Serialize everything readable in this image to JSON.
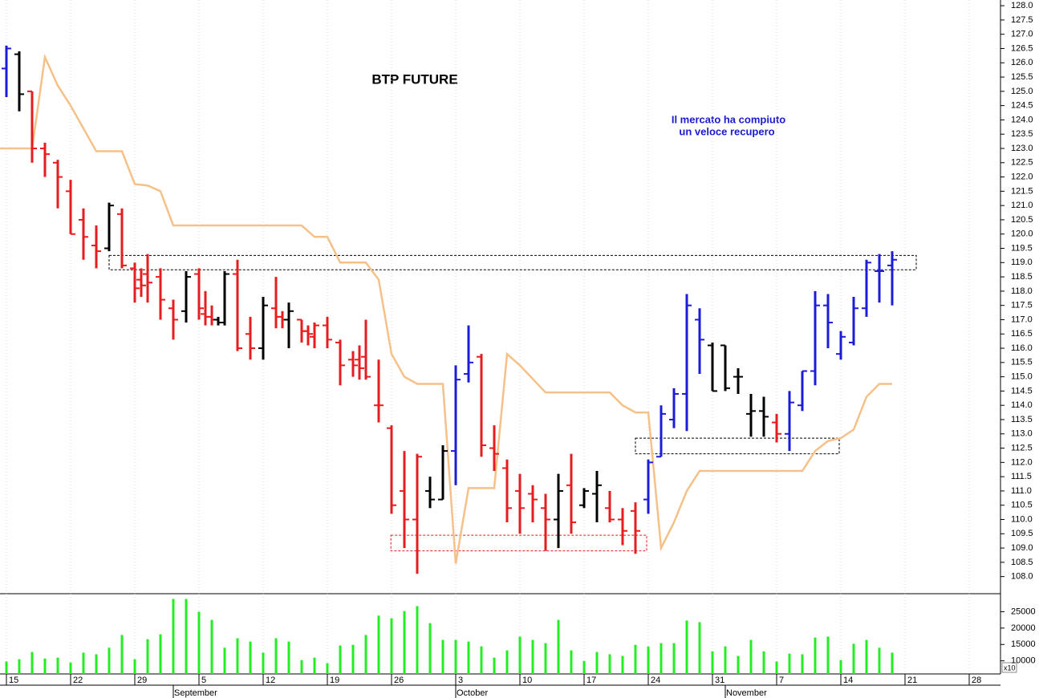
{
  "chart_data": [
    {
      "type": "ohlc",
      "title": "BTP FUTURE",
      "annotation": [
        "Il mercato ha compiuto",
        "un veloce recupero"
      ],
      "xlim": [
        -1,
        154.875
      ],
      "ylim": [
        107.4,
        128.2
      ],
      "xgrid": true,
      "xticks": [
        {
          "value": 0,
          "label": "15"
        },
        {
          "value": 10,
          "label": "22"
        },
        {
          "value": 20,
          "label": "29"
        },
        {
          "value": 30,
          "label": "5"
        },
        {
          "value": 40,
          "label": "12"
        },
        {
          "value": 50,
          "label": "19"
        },
        {
          "value": 60,
          "label": "26"
        },
        {
          "value": 70,
          "label": "3"
        },
        {
          "value": 80,
          "label": "10"
        },
        {
          "value": 90,
          "label": "17"
        },
        {
          "value": 100,
          "label": "24"
        },
        {
          "value": 110,
          "label": "31"
        },
        {
          "value": 120,
          "label": "7"
        },
        {
          "value": 130,
          "label": "14"
        },
        {
          "value": 140,
          "label": "21"
        },
        {
          "value": 150,
          "label": "28"
        }
      ],
      "month_ticks": [
        {
          "value": 26,
          "label": "September"
        },
        {
          "value": 70,
          "label": "October"
        },
        {
          "value": 112,
          "label": "November"
        }
      ],
      "yticks": [
        {
          "value": 108,
          "label": "108.0"
        },
        108.5,
        {
          "value": 109,
          "label": "109.0"
        },
        109.5,
        {
          "value": 110,
          "label": "110.0"
        },
        110.5,
        {
          "value": 111,
          "label": "111.0"
        },
        111.5,
        {
          "value": 112,
          "label": "112.0"
        },
        112.5,
        {
          "value": 113,
          "label": "113.0"
        },
        113.5,
        {
          "value": 114,
          "label": "114.0"
        },
        114.5,
        {
          "value": 115,
          "label": "115.0"
        },
        115.5,
        {
          "value": 116,
          "label": "116.0"
        },
        116.5,
        {
          "value": 117,
          "label": "117.0"
        },
        117.5,
        {
          "value": 118,
          "label": "118.0"
        },
        118.5,
        {
          "value": 119,
          "label": "119.0"
        },
        119.5,
        {
          "value": 120,
          "label": "120.0"
        },
        120.5,
        {
          "value": 121,
          "label": "121.0"
        },
        121.5,
        {
          "value": 122,
          "label": "122.0"
        },
        122.5,
        {
          "value": 123,
          "label": "123.0"
        },
        123.5,
        {
          "value": 124,
          "label": "124.0"
        },
        124.5,
        {
          "value": 125,
          "label": "125.0"
        },
        125.5,
        {
          "value": 126,
          "label": "126.0"
        },
        126.5,
        {
          "value": 127,
          "label": "127.0"
        },
        127.5,
        {
          "value": 128,
          "label": "128.0"
        }
      ],
      "palette": {
        "b": "#1c1cd8",
        "k": "#000000",
        "r": "#e81c1c"
      },
      "x": [
        0,
        2,
        4,
        6,
        8,
        10,
        12,
        14,
        16,
        18,
        20,
        21,
        22,
        24,
        26,
        28,
        30,
        31,
        32,
        33,
        34,
        36,
        38,
        40,
        42,
        43,
        44,
        46,
        47,
        48,
        50,
        52,
        54,
        55,
        56,
        58,
        60,
        62,
        64,
        66,
        68,
        70,
        72,
        74,
        76,
        78,
        80,
        82,
        84,
        86,
        88,
        90,
        92,
        94,
        96,
        98,
        100,
        102,
        104,
        106,
        108,
        110,
        112,
        114,
        116,
        118,
        120,
        122,
        124,
        126,
        128,
        130,
        132,
        134,
        136,
        138
      ],
      "open": [
        125.8,
        126.3,
        125.0,
        123.0,
        122.5,
        121.5,
        120.5,
        119.6,
        119.5,
        120.7,
        118.8,
        118.4,
        118.6,
        118.5,
        117.4,
        117.3,
        118.6,
        117.2,
        117.1,
        117.0,
        116.9,
        118.6,
        116.5,
        116.0,
        117.4,
        117.1,
        117.0,
        117.0,
        116.6,
        116.4,
        116.8,
        116.2,
        115.6,
        115.6,
        115.7,
        114.0,
        113.2,
        111.0,
        110.0,
        111.0,
        110.7,
        112.4,
        115.1,
        115.7,
        112.5,
        111.8,
        111.0,
        110.9,
        110.4,
        110.0,
        111.2,
        110.5,
        110.9,
        110.4,
        110.0,
        110.3,
        110.7,
        112.2,
        113.5,
        114.4,
        117.0,
        116.1,
        116.1,
        115.0,
        113.7,
        113.8,
        113.4,
        113.0,
        114.0,
        115.2,
        117.5,
        115.8,
        116.2,
        117.4,
        118.7,
        118.9
      ],
      "high": [
        126.6,
        126.4,
        125.0,
        123.2,
        122.6,
        121.9,
        120.9,
        120.3,
        121.1,
        120.9,
        119.0,
        118.8,
        119.3,
        118.8,
        117.7,
        118.7,
        118.8,
        118.0,
        117.5,
        117.1,
        118.7,
        119.1,
        117.1,
        117.8,
        118.5,
        117.3,
        117.6,
        117.0,
        116.8,
        116.9,
        117.1,
        116.3,
        115.9,
        116.1,
        117.0,
        115.6,
        113.3,
        112.4,
        112.3,
        111.5,
        112.6,
        115.4,
        116.8,
        115.8,
        113.3,
        112.1,
        111.6,
        111.2,
        110.9,
        111.6,
        112.3,
        111.1,
        111.7,
        111.0,
        110.4,
        110.6,
        112.1,
        114.0,
        114.6,
        117.9,
        117.4,
        116.2,
        116.1,
        115.3,
        114.4,
        114.3,
        113.7,
        114.5,
        115.2,
        118.0,
        117.9,
        116.6,
        117.8,
        119.1,
        119.3,
        119.4
      ],
      "low": [
        124.8,
        124.3,
        122.5,
        122.0,
        120.9,
        120.0,
        119.1,
        118.8,
        119.4,
        118.8,
        117.6,
        117.8,
        117.6,
        117.0,
        116.3,
        116.9,
        117.0,
        116.8,
        116.8,
        116.8,
        116.8,
        115.9,
        115.6,
        115.6,
        116.7,
        116.7,
        116.0,
        116.2,
        116.1,
        116.0,
        116.0,
        114.7,
        115.0,
        114.9,
        114.9,
        113.4,
        110.2,
        109.0,
        108.1,
        110.4,
        110.7,
        111.2,
        114.8,
        112.2,
        111.7,
        109.9,
        109.5,
        109.9,
        108.9,
        109.0,
        109.5,
        110.4,
        109.9,
        109.9,
        109.1,
        108.8,
        110.2,
        112.2,
        113.2,
        113.1,
        115.1,
        114.5,
        114.5,
        114.4,
        112.9,
        112.9,
        112.7,
        112.4,
        113.8,
        114.7,
        116.0,
        115.6,
        116.1,
        117.1,
        117.6,
        117.5
      ],
      "close": [
        126.5,
        124.9,
        123.0,
        122.8,
        122.0,
        120.0,
        119.9,
        119.4,
        121.0,
        118.9,
        118.1,
        118.2,
        118.3,
        117.7,
        117.0,
        118.5,
        117.4,
        117.1,
        117.0,
        116.9,
        118.6,
        116.0,
        116.0,
        117.5,
        117.1,
        117.0,
        117.3,
        116.6,
        116.5,
        116.8,
        116.3,
        115.4,
        115.4,
        115.3,
        115.0,
        114.0,
        110.5,
        110.0,
        112.2,
        110.7,
        112.4,
        114.9,
        115.5,
        112.6,
        112.3,
        110.4,
        110.4,
        110.7,
        110.0,
        111.0,
        109.9,
        111.0,
        111.2,
        110.0,
        109.6,
        109.6,
        112.0,
        113.7,
        114.4,
        117.5,
        116.3,
        114.5,
        114.6,
        115.0,
        113.8,
        113.6,
        113.0,
        114.1,
        115.2,
        117.5,
        116.9,
        116.4,
        117.4,
        119.0,
        118.7,
        119.1
      ],
      "color_key": [
        "b",
        "k",
        "r",
        "r",
        "r",
        "r",
        "r",
        "r",
        "k",
        "r",
        "r",
        "r",
        "r",
        "r",
        "r",
        "k",
        "r",
        "r",
        "r",
        "k",
        "k",
        "r",
        "r",
        "k",
        "r",
        "r",
        "k",
        "r",
        "r",
        "r",
        "r",
        "r",
        "r",
        "r",
        "r",
        "r",
        "r",
        "r",
        "r",
        "k",
        "k",
        "b",
        "b",
        "r",
        "r",
        "r",
        "r",
        "r",
        "r",
        "k",
        "r",
        "k",
        "k",
        "r",
        "r",
        "r",
        "b",
        "b",
        "b",
        "b",
        "b",
        "k",
        "k",
        "k",
        "k",
        "k",
        "r",
        "b",
        "b",
        "b",
        "b",
        "b",
        "b",
        "b",
        "b",
        "b"
      ],
      "overlay": {
        "color": "#f5c189",
        "x": [
          -1,
          4,
          6,
          8,
          10,
          12,
          14,
          18,
          20,
          22,
          24,
          26,
          46,
          48,
          50,
          52,
          56,
          58,
          60,
          62,
          64,
          68,
          70,
          72,
          76,
          78,
          80,
          84,
          94,
          96,
          98,
          100,
          102,
          104,
          106,
          108,
          124,
          126,
          128,
          130,
          132,
          134,
          136,
          138
        ],
        "values": [
          123.0,
          123.0,
          126.2,
          125.2,
          124.5,
          123.7,
          122.9,
          122.9,
          121.75,
          121.7,
          121.5,
          120.3,
          120.3,
          119.9,
          119.9,
          119.0,
          119.0,
          118.4,
          115.8,
          115.0,
          114.75,
          114.75,
          108.45,
          111.1,
          111.1,
          115.8,
          115.4,
          114.45,
          114.45,
          114.0,
          113.75,
          113.75,
          109.0,
          109.9,
          111.0,
          111.7,
          111.7,
          112.4,
          112.75,
          112.85,
          113.15,
          114.3,
          114.75,
          114.75
        ]
      },
      "zones": [
        {
          "x": [
            16,
            141.75
          ],
          "y": [
            118.75,
            119.25
          ],
          "color": "#000000"
        },
        {
          "x": [
            98,
            129.75
          ],
          "y": [
            112.3,
            112.85
          ],
          "color": "#000000"
        },
        {
          "x": [
            59.9,
            99.75
          ],
          "y": [
            108.9,
            109.45
          ],
          "color": "#e81c1c"
        }
      ]
    },
    {
      "type": "bar",
      "color": "#22ee22",
      "xlim": [
        -1,
        154.875
      ],
      "ylim": [
        6000,
        30500
      ],
      "yticks": [
        10000,
        15000,
        20000,
        25000
      ],
      "y_scale_note": "x10",
      "x": [
        0,
        2,
        4,
        6,
        8,
        10,
        12,
        14,
        16,
        18,
        20,
        22,
        24,
        26,
        28,
        30,
        32,
        34,
        36,
        38,
        40,
        42,
        44,
        46,
        48,
        50,
        52,
        54,
        56,
        58,
        60,
        62,
        64,
        66,
        68,
        70,
        72,
        74,
        76,
        78,
        80,
        82,
        84,
        86,
        88,
        90,
        92,
        94,
        96,
        98,
        100,
        102,
        104,
        106,
        108,
        110,
        112,
        114,
        116,
        118,
        120,
        122,
        124,
        126,
        128,
        130,
        132,
        134,
        136,
        138
      ],
      "values": [
        9800,
        10500,
        12700,
        10700,
        11000,
        9500,
        12500,
        12000,
        14000,
        17900,
        10500,
        16600,
        18100,
        28900,
        28900,
        25000,
        22500,
        14000,
        16900,
        15900,
        12500,
        16900,
        15900,
        10200,
        11000,
        9300,
        14700,
        14900,
        17900,
        23800,
        23000,
        25200,
        26700,
        21500,
        16400,
        16400,
        15900,
        14400,
        11000,
        13200,
        17400,
        16400,
        15400,
        22500,
        13200,
        10000,
        12700,
        12000,
        11500,
        14900,
        14400,
        15400,
        15400,
        22300,
        21800,
        12900,
        14400,
        11500,
        16400,
        12900,
        9800,
        12200,
        12000,
        17100,
        17400,
        10200,
        15200,
        16400,
        14000,
        12500
      ]
    }
  ]
}
